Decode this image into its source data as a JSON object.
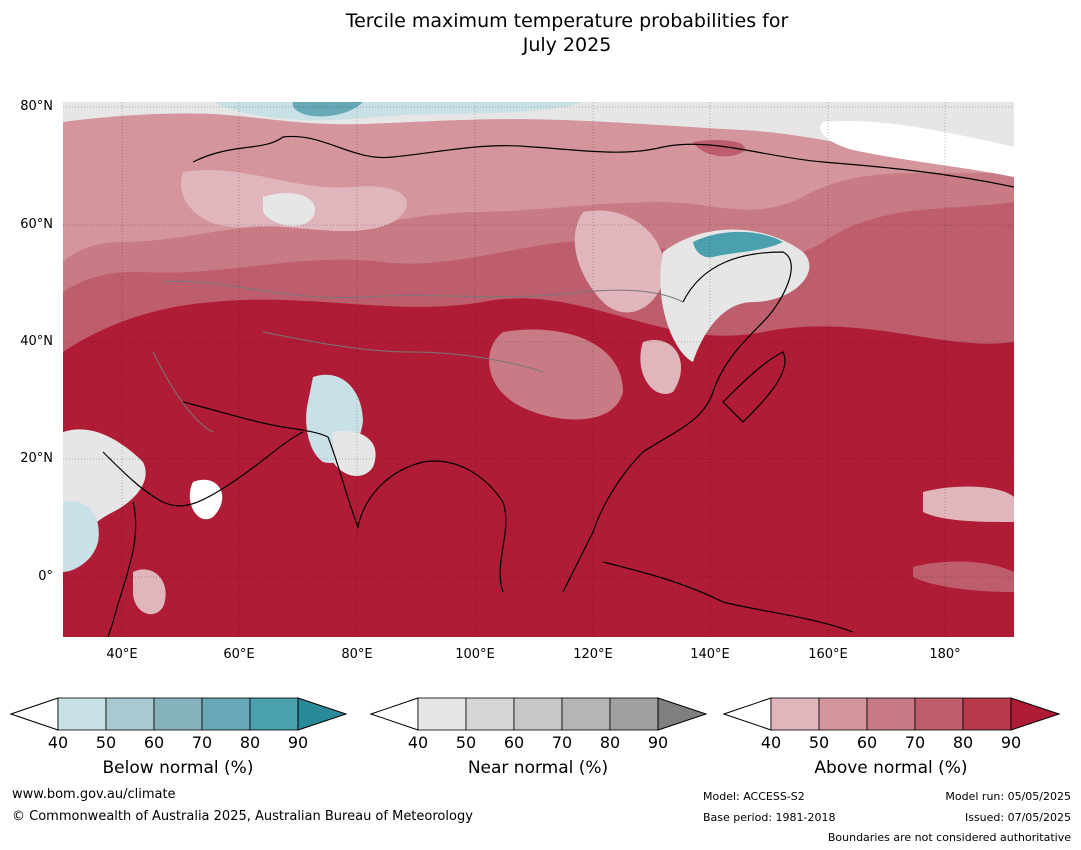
{
  "title_line1": "Tercile maximum temperature probabilities for",
  "title_line2": "July 2025",
  "lat_ticks": [
    "80°N",
    "60°N",
    "40°N",
    "20°N",
    "0°"
  ],
  "lon_ticks": [
    "40°E",
    "60°E",
    "80°E",
    "100°E",
    "120°E",
    "140°E",
    "160°E",
    "180°"
  ],
  "colorbars": [
    {
      "label": "Below normal (%)",
      "ticks": [
        "40",
        "50",
        "60",
        "70",
        "80",
        "90"
      ],
      "colors": [
        "#ffffff",
        "#c9e0e6",
        "#a8c9cf",
        "#87b3bd",
        "#67a9b6",
        "#4aa0ae",
        "#2b8a99"
      ]
    },
    {
      "label": "Near normal (%)",
      "ticks": [
        "40",
        "50",
        "60",
        "70",
        "80",
        "90"
      ],
      "colors": [
        "#ffffff",
        "#e6e6e6",
        "#d6d6d6",
        "#c8c8c8",
        "#b5b5b5",
        "#a0a0a0",
        "#7f7f7f"
      ]
    },
    {
      "label": "Above normal (%)",
      "ticks": [
        "40",
        "50",
        "60",
        "70",
        "80",
        "90"
      ],
      "colors": [
        "#ffffff",
        "#e0b6bc",
        "#d4959c",
        "#c87b85",
        "#be5e6c",
        "#b8384b",
        "#b01c36"
      ]
    }
  ],
  "footer": {
    "url": "www.bom.gov.au/climate",
    "copyright": "© Commonwealth of Australia 2025, Australian Bureau of Meteorology",
    "model": "Model: ACCESS-S2",
    "base_period": "Base period: 1981-2018",
    "model_run": "Model run: 05/05/2025",
    "issued": "Issued: 07/05/2025",
    "boundaries": "Boundaries are not considered authoritative"
  },
  "map_colors": {
    "above_90": "#b01c36",
    "above_80": "#b8384b",
    "above_70": "#be5e6c",
    "above_60": "#c87b85",
    "above_50": "#d4959c",
    "above_40": "#e0b6bc",
    "near": "#e6e6e6",
    "below": "#a8c9cf",
    "below_high": "#4aa0ae"
  }
}
